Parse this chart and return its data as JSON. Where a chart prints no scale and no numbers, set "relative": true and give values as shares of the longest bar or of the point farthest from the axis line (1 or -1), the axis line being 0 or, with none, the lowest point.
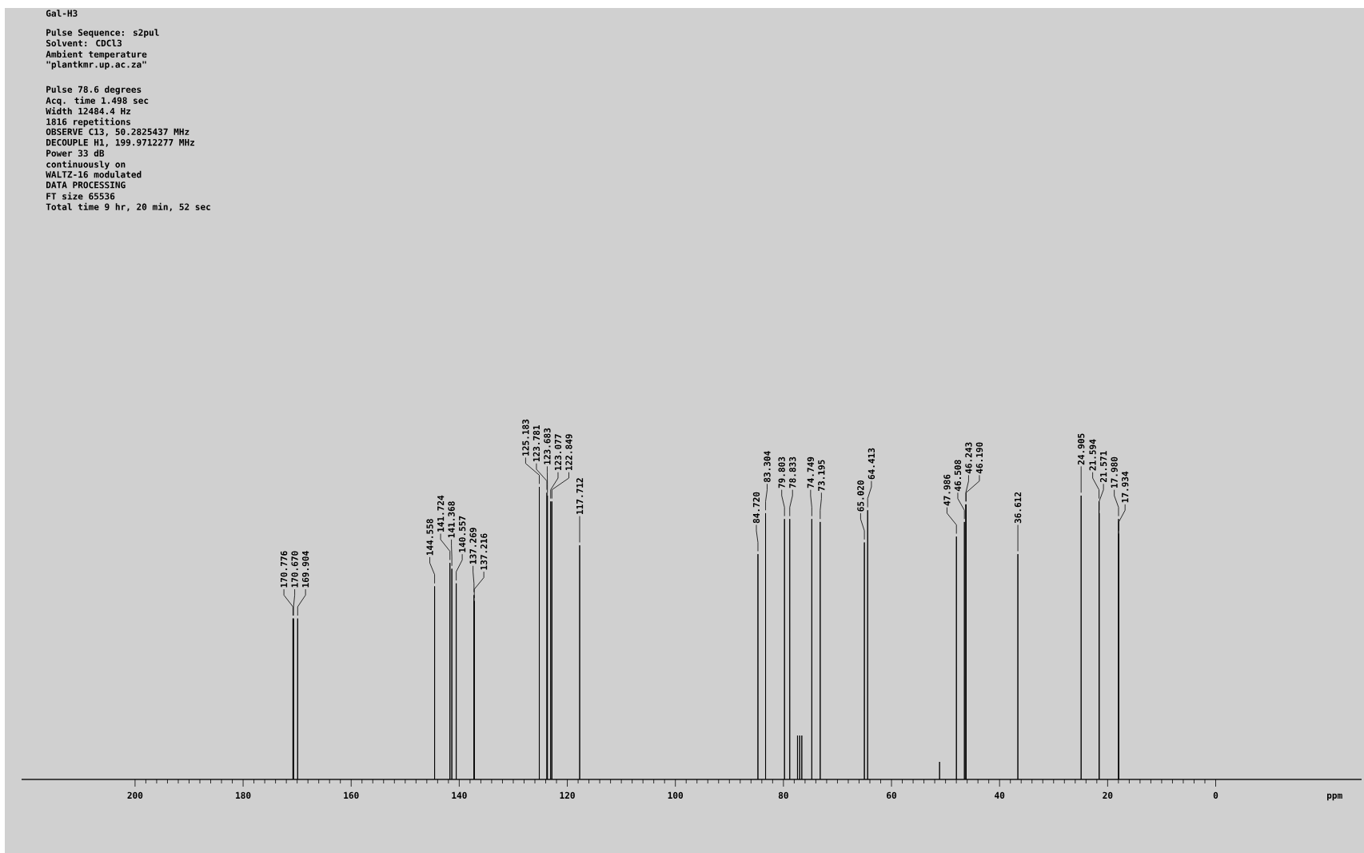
{
  "chart_data": {
    "type": "line",
    "title": "Gal-H3",
    "xlabel": "ppm",
    "relative": true,
    "xlim": [
      221,
      -27
    ],
    "xticks": [
      200,
      180,
      160,
      140,
      120,
      100,
      80,
      60,
      40,
      20,
      0
    ],
    "series": [
      {
        "color": "#000000",
        "x": [
          221,
          170.786,
          170.776,
          170.766,
          170.68,
          170.67,
          170.66,
          169.914,
          169.904,
          169.894,
          144.568,
          144.558,
          144.548,
          141.734,
          141.724,
          141.714,
          141.378,
          141.368,
          141.358,
          140.567,
          140.557,
          140.547,
          137.279,
          137.269,
          137.259,
          137.226,
          137.216,
          137.206,
          125.193,
          125.183,
          125.173,
          123.791,
          123.781,
          123.771,
          123.693,
          123.683,
          123.673,
          123.087,
          123.077,
          123.067,
          122.859,
          122.849,
          122.839,
          117.722,
          117.712,
          117.702,
          84.73,
          84.72,
          84.71,
          83.314,
          83.304,
          83.294,
          79.813,
          79.803,
          79.793,
          78.843,
          78.833,
          78.823,
          77.41,
          77.4,
          77.39,
          77.01,
          77.0,
          76.99,
          76.61,
          76.6,
          76.59,
          74.759,
          74.749,
          74.739,
          73.205,
          73.195,
          73.185,
          65.03,
          65.02,
          65.01,
          64.423,
          64.413,
          64.403,
          51.11,
          51.1,
          51.09,
          47.996,
          47.986,
          47.976,
          46.518,
          46.508,
          46.498,
          46.253,
          46.243,
          46.233,
          46.2,
          46.19,
          46.18,
          36.622,
          36.612,
          36.602,
          24.915,
          24.905,
          24.895,
          21.604,
          21.594,
          21.584,
          21.581,
          21.571,
          21.561,
          17.99,
          17.98,
          17.97,
          17.944,
          17.934,
          17.924,
          -27
        ],
        "values": [
          0,
          0,
          0.55,
          0,
          0,
          0.55,
          0,
          0,
          0.55,
          0,
          0,
          0.66,
          0,
          0,
          0.74,
          0,
          0,
          0.72,
          0,
          0,
          0.67,
          0,
          0,
          0.63,
          0,
          0,
          0.61,
          0,
          0,
          1,
          0,
          0,
          0.98,
          0,
          0,
          0.97,
          0,
          0,
          0.95,
          0,
          0,
          0.95,
          0,
          0,
          0.8,
          0,
          0,
          0.77,
          0,
          0,
          0.91,
          0,
          0,
          0.89,
          0,
          0,
          0.89,
          0,
          0,
          0.15,
          0,
          0,
          0.15,
          0,
          0,
          0.15,
          0,
          0,
          0.89,
          0,
          0,
          0.88,
          0,
          0,
          0.81,
          0,
          0,
          0.92,
          0,
          0,
          0.06,
          0,
          0,
          0.83,
          0,
          0,
          0.88,
          0,
          0,
          0.94,
          0,
          0,
          0.94,
          0,
          0,
          0.77,
          0,
          0,
          0.97,
          0,
          0,
          0.95,
          0,
          0,
          0.91,
          0,
          0,
          0.89,
          0,
          0,
          0.84,
          0,
          0
        ]
      }
    ],
    "annotations": [
      "Pulse Sequence: s2pul",
      "Solvent: CDCl3",
      "Ambient temperature",
      "\"plantkmr.up.ac.za\"",
      "Pulse 78.6 degrees",
      "Acq. time 1.498 sec",
      "Width 12484.4 Hz",
      "1816 repetitions",
      "OBSERVE  C13, 50.2825437 MHz",
      "DECOUPLE  H1, 199.9712277 MHz",
      "Power 33 dB",
      "continuously on",
      "WALTZ-16 modulated",
      "DATA PROCESSING",
      "FT size 65536",
      "Total time 9 hr, 20 min, 52 sec",
      {
        "text": "170.776",
        "x": 170.776,
        "y": 0.55
      },
      {
        "text": "170.670",
        "x": 170.67,
        "y": 0.55
      },
      {
        "text": "169.904",
        "x": 169.904,
        "y": 0.55
      },
      {
        "text": "144.558",
        "x": 144.558,
        "y": 0.66
      },
      {
        "text": "141.724",
        "x": 141.724,
        "y": 0.74
      },
      {
        "text": "141.368",
        "x": 141.368,
        "y": 0.72
      },
      {
        "text": "140.557",
        "x": 140.557,
        "y": 0.67
      },
      {
        "text": "137.269",
        "x": 137.269,
        "y": 0.63
      },
      {
        "text": "137.216",
        "x": 137.216,
        "y": 0.61
      },
      {
        "text": "125.183",
        "x": 125.183,
        "y": 1
      },
      {
        "text": "123.781",
        "x": 123.781,
        "y": 0.98
      },
      {
        "text": "123.683",
        "x": 123.683,
        "y": 0.97
      },
      {
        "text": "123.077",
        "x": 123.077,
        "y": 0.95
      },
      {
        "text": "122.849",
        "x": 122.849,
        "y": 0.95
      },
      {
        "text": "117.712",
        "x": 117.712,
        "y": 0.8
      },
      {
        "text": "84.720",
        "x": 84.72,
        "y": 0.77
      },
      {
        "text": "83.304",
        "x": 83.304,
        "y": 0.91
      },
      {
        "text": "79.803",
        "x": 79.803,
        "y": 0.89
      },
      {
        "text": "78.833",
        "x": 78.833,
        "y": 0.89
      },
      {
        "text": "74.749",
        "x": 74.749,
        "y": 0.89
      },
      {
        "text": "73.195",
        "x": 73.195,
        "y": 0.88
      },
      {
        "text": "65.020",
        "x": 65.02,
        "y": 0.81
      },
      {
        "text": "64.413",
        "x": 64.413,
        "y": 0.92
      },
      {
        "text": "47.986",
        "x": 47.986,
        "y": 0.83
      },
      {
        "text": "46.508",
        "x": 46.508,
        "y": 0.88
      },
      {
        "text": "46.243",
        "x": 46.243,
        "y": 0.94
      },
      {
        "text": "46.190",
        "x": 46.19,
        "y": 0.94
      },
      {
        "text": "36.612",
        "x": 36.612,
        "y": 0.77
      },
      {
        "text": "24.905",
        "x": 24.905,
        "y": 0.97
      },
      {
        "text": "21.594",
        "x": 21.594,
        "y": 0.95
      },
      {
        "text": "21.571",
        "x": 21.571,
        "y": 0.91
      },
      {
        "text": "17.980",
        "x": 17.98,
        "y": 0.89
      },
      {
        "text": "17.934",
        "x": 17.934,
        "y": 0.84
      }
    ]
  }
}
